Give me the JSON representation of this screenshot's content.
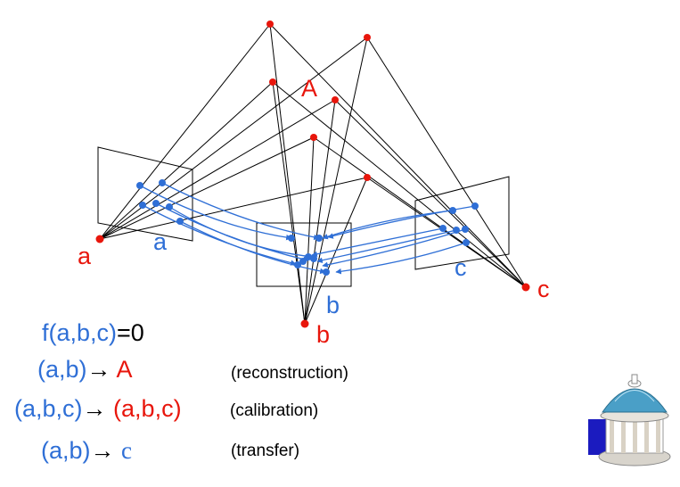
{
  "labels": {
    "point_A": "A",
    "cam_a": "a",
    "img_a": "a",
    "cam_b": "b",
    "img_b": "b",
    "cam_c": "c",
    "img_c": "c"
  },
  "equations": {
    "constraint_f": "f(a,b,c)",
    "constraint_eq": "=0",
    "recon_lhs": "(a,b)",
    "recon_rhs": "A",
    "recon_note": "(reconstruction)",
    "calib_lhs": "(a,b,c)",
    "calib_rhs": "(a,b,c)",
    "calib_note": "(calibration)",
    "transfer_lhs": "(a,b)",
    "transfer_rhs": "c",
    "transfer_note": "(transfer)",
    "arrow": "→"
  },
  "colors": {
    "camera_red": "#e8160c",
    "feature_blue": "#2f6fd6",
    "ray_black": "#000000"
  },
  "logo": {
    "icon": "old-well-gazebo-logo"
  }
}
